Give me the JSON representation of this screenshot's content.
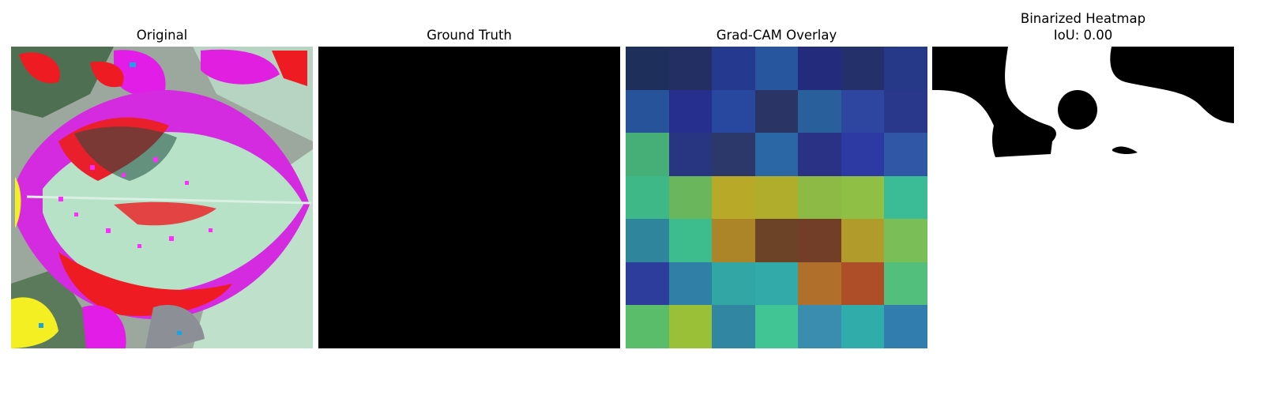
{
  "panels": [
    {
      "title": "Original"
    },
    {
      "title": "Ground Truth"
    },
    {
      "title": "Grad-CAM Overlay"
    },
    {
      "title_line1": "Binarized Heatmap",
      "title_line2": "IoU: 0.00"
    }
  ],
  "gradcam_colors": [
    [
      "#1f2f5c",
      "#232f63",
      "#253a8f",
      "#27569f",
      "#232c7c",
      "#24306a",
      "#253988"
    ],
    [
      "#26539a",
      "#262f8d",
      "#2848a0",
      "#2a3565",
      "#29609b",
      "#2e46a0",
      "#29388a"
    ],
    [
      "#46af78",
      "#283580",
      "#2d386a",
      "#2b66a5",
      "#293285",
      "#2d3aa4",
      "#2f57a6"
    ],
    [
      "#3fb888",
      "#6ab65c",
      "#b8a928",
      "#afad2b",
      "#8db945",
      "#8fbf44",
      "#3bbc96"
    ],
    [
      "#2f859c",
      "#3dbc8d",
      "#ad8529",
      "#6d4327",
      "#733e27",
      "#b19b2b",
      "#7abe58"
    ],
    [
      "#2d3d9b",
      "#2f7fa7",
      "#32a6a5",
      "#33aaaa",
      "#b06f2b",
      "#ad4e29",
      "#52c07c"
    ],
    [
      "#5abd6a",
      "#9ac038",
      "#3186a2",
      "#42c594",
      "#3a8daf",
      "#30adaa",
      "#317eae"
    ]
  ]
}
